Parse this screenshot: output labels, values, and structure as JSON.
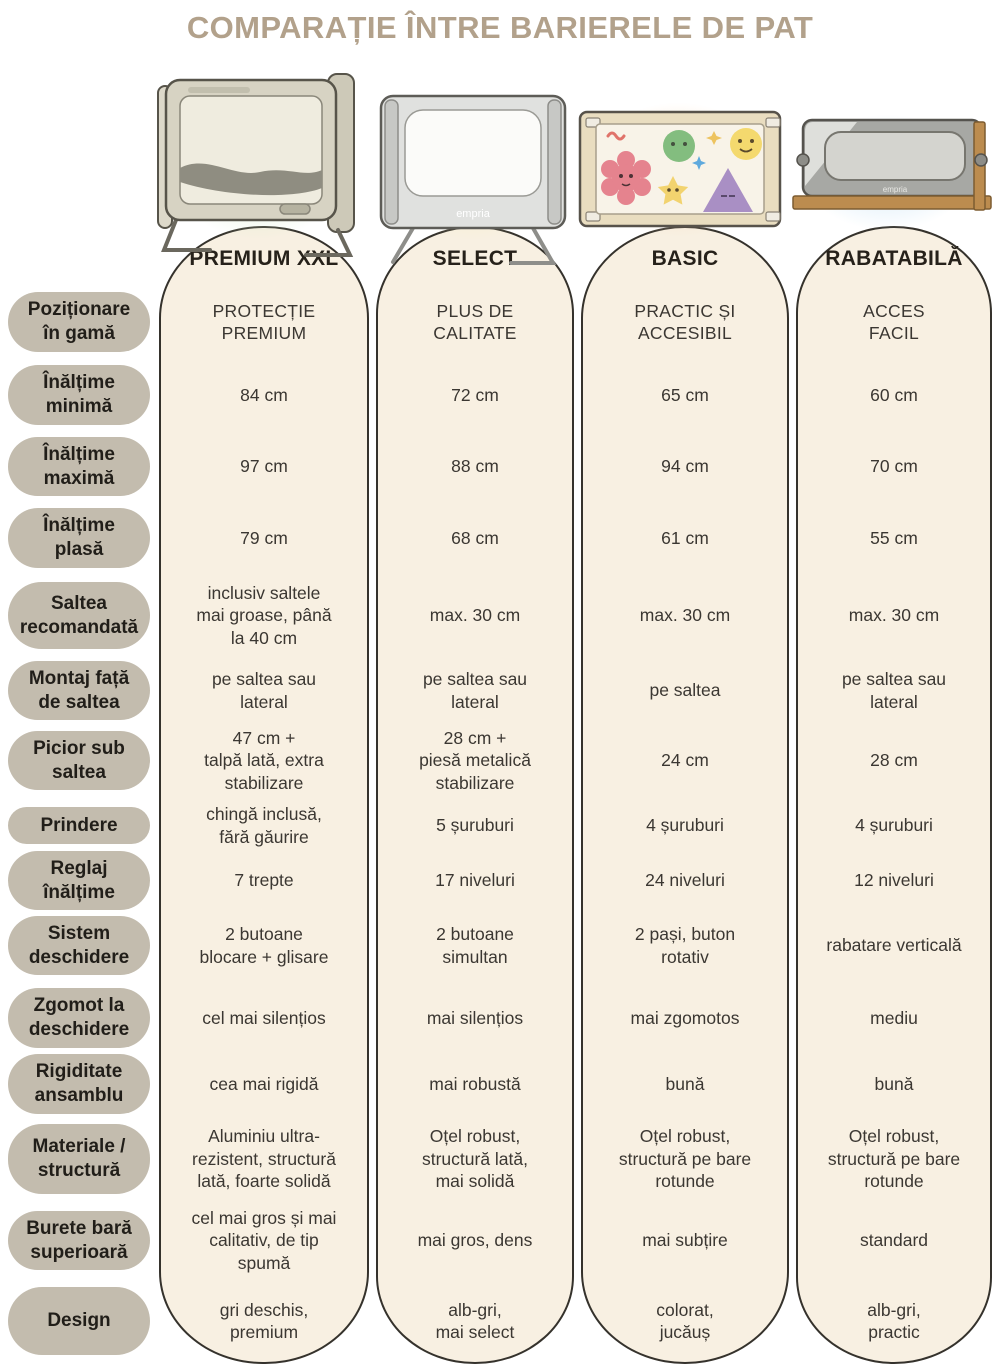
{
  "title": "COMPARAȚIE ÎNTRE BARIERELE DE PAT",
  "brand_label": "empria",
  "colors": {
    "title_text": "#b2a18b",
    "column_fill": "#f8f0e2",
    "column_border": "#35322c",
    "label_pill_fill": "#c3bcae",
    "body_text": "#3b3732",
    "glow_premium": "#d9edca",
    "glow_select": "#fbeec0",
    "glow_basic": "#fbdfc0",
    "glow_rabatabila": "#d2e8f7"
  },
  "chart_data": {
    "type": "table",
    "title": "COMPARAȚIE ÎNTRE BARIERELE DE PAT",
    "row_headers": [
      "Poziționare\nîn gamă",
      "Înălțime\nminimă",
      "Înălțime\nmaximă",
      "Înălțime\nplasă",
      "Saltea\nrecomandată",
      "Montaj față\nde saltea",
      "Picior sub\nsaltea",
      "Prindere",
      "Reglaj\nînălțime",
      "Sistem\ndeschidere",
      "Zgomot la\ndeschidere",
      "Rigiditate\nansamblu",
      "Materiale /\nstructură",
      "Burete bară\nsuperioară",
      "Design"
    ],
    "columns": [
      {
        "name": "PREMIUM XXL",
        "image": "premium-xxl-bed-rail-illustration",
        "values": [
          "PROTECȚIE\nPREMIUM",
          "84 cm",
          "97 cm",
          "79 cm",
          "inclusiv saltele\nmai groase, până\nla 40 cm",
          "pe saltea sau\nlateral",
          "47 cm +\ntalpă lată, extra\nstabilizare",
          "chingă inclusă,\nfără găurire",
          "7 trepte",
          "2 butoane\nblocare + glisare",
          "cel mai silențios",
          "cea mai rigidă",
          "Aluminiu ultra-\nrezistent, structură\nlată, foarte solidă",
          "cel mai gros și mai\ncalitativ, de tip\nspumă",
          "gri deschis,\npremium"
        ]
      },
      {
        "name": "SELECT",
        "image": "select-bed-rail-illustration",
        "values": [
          "PLUS DE\nCALITATE",
          "72 cm",
          "88 cm",
          "68 cm",
          "max. 30 cm",
          "pe saltea sau\nlateral",
          "28 cm +\npiesă metalică\nstabilizare",
          "5 șuruburi",
          "17 niveluri",
          "2 butoane\nsimultan",
          "mai silențios",
          "mai robustă",
          "Oțel robust,\nstructură lată,\nmai solidă",
          "mai gros, dens",
          "alb-gri,\nmai select"
        ]
      },
      {
        "name": "BASIC",
        "image": "basic-bed-rail-illustration",
        "values": [
          "PRACTIC ȘI\nACCESIBIL",
          "65 cm",
          "94 cm",
          "61 cm",
          "max. 30 cm",
          "pe saltea",
          "24 cm",
          "4 șuruburi",
          "24 niveluri",
          "2 pași, buton\nrotativ",
          "mai zgomotos",
          "bună",
          "Oțel robust,\nstructură pe bare\nrotunde",
          "mai subțire",
          "colorat,\njucăuș"
        ]
      },
      {
        "name": "RABATABILĂ",
        "image": "rabatabila-bed-rail-illustration",
        "values": [
          "ACCES\nFACIL",
          "60 cm",
          "70 cm",
          "55 cm",
          "max. 30 cm",
          "pe saltea sau\nlateral",
          "28 cm",
          "4 șuruburi",
          "12 niveluri",
          "rabatare verticală",
          "mediu",
          "bună",
          "Oțel robust,\nstructură pe bare\nrotunde",
          "standard",
          "alb-gri,\npractic"
        ]
      }
    ]
  }
}
